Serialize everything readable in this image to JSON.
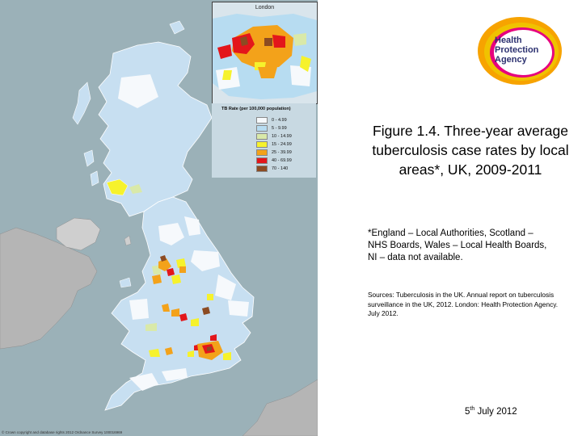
{
  "map": {
    "inset_label": "London",
    "legend": {
      "title": "TB Rate (per 100,000 population)",
      "items": [
        {
          "label": "0 - 4.99",
          "color": "#f6f9fc"
        },
        {
          "label": "5 - 9.99",
          "color": "#b7dcf1"
        },
        {
          "label": "10 - 14.99",
          "color": "#d9e9a9"
        },
        {
          "label": "15 - 24.99",
          "color": "#f6f22c"
        },
        {
          "label": "25 - 39.99",
          "color": "#f3a21a"
        },
        {
          "label": "40 - 69.99",
          "color": "#e3161b"
        },
        {
          "label": "70 - 140",
          "color": "#8c4b22"
        }
      ]
    },
    "copyright": "© Crown copyright and database rights 2012 Ordnance Survey 100016969"
  },
  "logo": {
    "line1": "Health",
    "line2": "Protection",
    "line3": "Agency",
    "colors": {
      "ring_outer": "#f7a300",
      "ring_inner": "#f0c200",
      "ring_pink": "#e6007e",
      "text": "#2c3170"
    }
  },
  "figure": {
    "title": "Figure 1.4. Three-year average tuberculosis case rates by local areas*, UK, 2009-2011",
    "note": "*England – Local Authorities, Scotland – NHS Boards, Wales – Local Health Boards, NI – data not available.",
    "sources": "Sources: Tuberculosis in the UK. Annual report on tuberculosis surveillance in the UK, 2012. London: Health Protection Agency. July 2012.",
    "date_day": "5",
    "date_suffix": "th",
    "date_rest": " July 2012"
  }
}
